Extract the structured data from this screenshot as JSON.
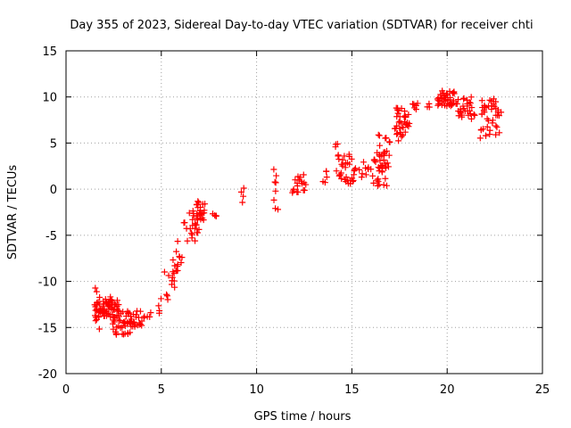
{
  "chart_data": {
    "type": "scatter",
    "title": "Day 355 of 2023, Sidereal Day-to-day VTEC variation (SDTVAR) for receiver chti",
    "xlabel": "GPS time / hours",
    "ylabel": "SDTVAR / TECUs",
    "xlim": [
      0,
      25
    ],
    "ylim": [
      -20,
      15
    ],
    "xticks": [
      0,
      5,
      10,
      15,
      20,
      25
    ],
    "yticks": [
      -20,
      -15,
      -10,
      -5,
      0,
      5,
      10,
      15
    ],
    "grid": true,
    "marker": "+",
    "marker_color": "#ff0000",
    "clusters": [
      {
        "x0": 1.5,
        "x1": 1.7,
        "y0": -15.5,
        "y1": -10.0,
        "n": 14
      },
      {
        "x0": 1.6,
        "x1": 2.4,
        "y0": -13.5,
        "y1": -11.5,
        "n": 30
      },
      {
        "x0": 2.0,
        "x1": 2.8,
        "y0": -14.0,
        "y1": -12.0,
        "n": 30
      },
      {
        "x0": 2.4,
        "x1": 3.4,
        "y0": -15.8,
        "y1": -13.0,
        "n": 38
      },
      {
        "x0": 3.2,
        "x1": 4.0,
        "y0": -15.0,
        "y1": -13.2,
        "n": 26
      },
      {
        "x0": 4.0,
        "x1": 4.5,
        "y0": -14.0,
        "y1": -13.2,
        "n": 5
      },
      {
        "x0": 4.8,
        "x1": 5.0,
        "y0": -13.8,
        "y1": -11.0,
        "n": 4
      },
      {
        "x0": 5.2,
        "x1": 5.4,
        "y0": -12.5,
        "y1": -8.5,
        "n": 5
      },
      {
        "x0": 5.5,
        "x1": 5.9,
        "y0": -11.0,
        "y1": -7.5,
        "n": 14
      },
      {
        "x0": 5.8,
        "x1": 6.1,
        "y0": -8.0,
        "y1": -5.2,
        "n": 6
      },
      {
        "x0": 6.2,
        "x1": 6.4,
        "y0": -6.0,
        "y1": -3.0,
        "n": 4
      },
      {
        "x0": 6.5,
        "x1": 7.0,
        "y0": -5.8,
        "y1": -2.0,
        "n": 22
      },
      {
        "x0": 6.8,
        "x1": 7.3,
        "y0": -3.5,
        "y1": -1.2,
        "n": 20
      },
      {
        "x0": 7.7,
        "x1": 7.9,
        "y0": -3.3,
        "y1": -2.5,
        "n": 4
      },
      {
        "x0": 9.2,
        "x1": 9.3,
        "y0": -2.0,
        "y1": 0.3,
        "n": 4
      },
      {
        "x0": 10.9,
        "x1": 11.1,
        "y0": -3.0,
        "y1": 2.2,
        "n": 8
      },
      {
        "x0": 11.9,
        "x1": 12.6,
        "y0": -0.5,
        "y1": 1.7,
        "n": 18
      },
      {
        "x0": 13.5,
        "x1": 13.7,
        "y0": 0.5,
        "y1": 2.5,
        "n": 5
      },
      {
        "x0": 14.1,
        "x1": 14.3,
        "y0": 4.4,
        "y1": 5.0,
        "n": 3
      },
      {
        "x0": 14.2,
        "x1": 15.2,
        "y0": 0.5,
        "y1": 4.0,
        "n": 34
      },
      {
        "x0": 15.4,
        "x1": 16.0,
        "y0": 1.2,
        "y1": 3.2,
        "n": 10
      },
      {
        "x0": 16.1,
        "x1": 16.8,
        "y0": 0.3,
        "y1": 4.2,
        "n": 26
      },
      {
        "x0": 16.4,
        "x1": 17.0,
        "y0": 2.0,
        "y1": 6.0,
        "n": 22
      },
      {
        "x0": 17.3,
        "x1": 17.6,
        "y0": 5.0,
        "y1": 9.3,
        "n": 20
      },
      {
        "x0": 17.6,
        "x1": 18.0,
        "y0": 5.5,
        "y1": 8.5,
        "n": 18
      },
      {
        "x0": 18.1,
        "x1": 18.5,
        "y0": 8.5,
        "y1": 9.5,
        "n": 6
      },
      {
        "x0": 18.9,
        "x1": 19.1,
        "y0": 8.8,
        "y1": 9.4,
        "n": 3
      },
      {
        "x0": 19.5,
        "x1": 20.4,
        "y0": 9.0,
        "y1": 10.8,
        "n": 38
      },
      {
        "x0": 20.5,
        "x1": 21.4,
        "y0": 7.5,
        "y1": 10.0,
        "n": 30
      },
      {
        "x0": 21.7,
        "x1": 22.8,
        "y0": 5.3,
        "y1": 9.8,
        "n": 42
      }
    ]
  }
}
